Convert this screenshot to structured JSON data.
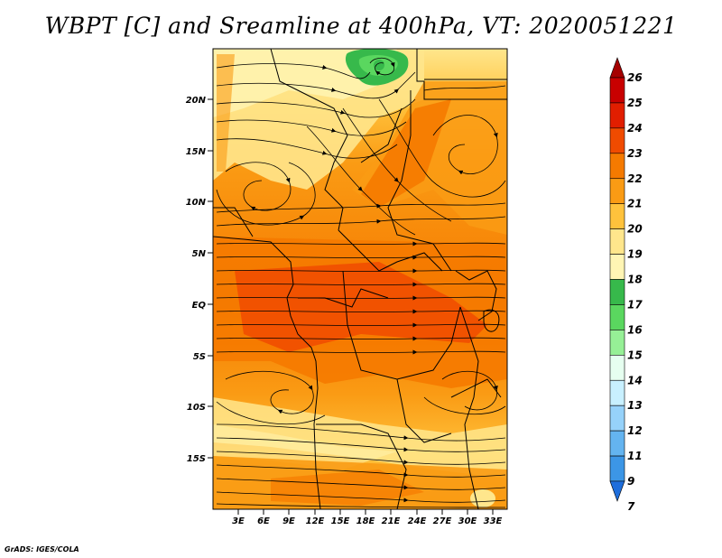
{
  "title": "WBPT [C] and Sreamline at 400hPa, VT: 2020051221",
  "footer": "GrADS: IGES/COLA",
  "lat_ticks": [
    "20N",
    "15N",
    "10N",
    "5N",
    "EQ",
    "5S",
    "10S",
    "15S"
  ],
  "lon_ticks": [
    "3E",
    "6E",
    "9E",
    "12E",
    "15E",
    "18E",
    "21E",
    "24E",
    "27E",
    "30E",
    "33E"
  ],
  "colorbar": {
    "labels": [
      "26",
      "25",
      "24",
      "23",
      "22",
      "21",
      "20",
      "19",
      "18",
      "17",
      "16",
      "15",
      "14",
      "13",
      "12",
      "11",
      "9",
      "7"
    ],
    "colors": [
      "#a50000",
      "#c80000",
      "#e11e00",
      "#f04b00",
      "#f57a00",
      "#fa9b14",
      "#ffc23c",
      "#ffe68c",
      "#fff5b4",
      "#37b94b",
      "#5ad75f",
      "#96f096",
      "#e6fff0",
      "#c8f0ff",
      "#96d2fa",
      "#64b4f0",
      "#3c96e6",
      "#1e6edc"
    ]
  }
}
